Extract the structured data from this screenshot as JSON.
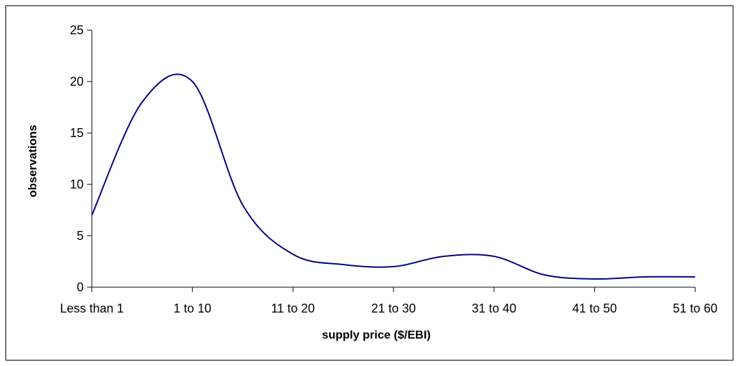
{
  "chart_data": {
    "type": "line",
    "title": "",
    "xlabel": "supply price ($/EBI)",
    "ylabel": "observations",
    "categories": [
      "Less than 1",
      "1 to 10",
      "11 to 20",
      "21 to 30",
      "31 to 40",
      "41 to 50",
      "51 to 60"
    ],
    "y_ticks": [
      0,
      5,
      10,
      15,
      20,
      25
    ],
    "ylim": [
      0,
      25
    ],
    "grid": false,
    "legend": "none",
    "smooth": true,
    "line_color": "#000080",
    "series": [
      {
        "x": [
          0,
          0.5,
          1,
          1.5,
          2,
          2.5,
          3,
          3.5,
          4,
          4.5,
          5,
          5.5,
          6
        ],
        "values": [
          7,
          18,
          20,
          8,
          3.2,
          2.2,
          2,
          3,
          3,
          1.2,
          0.8,
          1,
          1
        ]
      }
    ]
  }
}
